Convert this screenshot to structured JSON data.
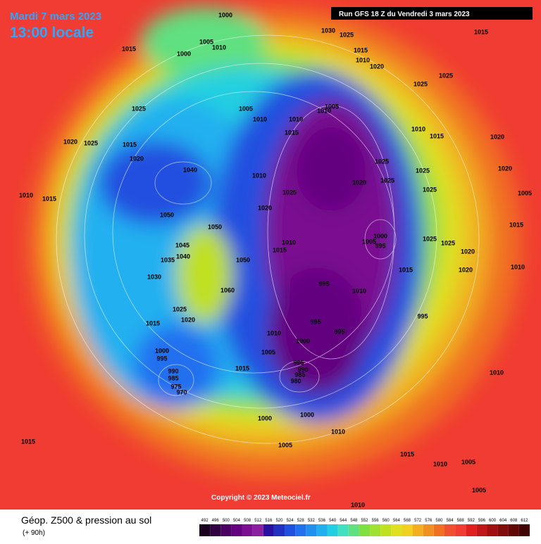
{
  "header": {
    "date": "Mardi 7 mars 2023",
    "time": "13:00 locale",
    "run": "Run GFS 18 Z du Vendredi 3 mars 2023"
  },
  "footer": {
    "title": "Géop. Z500 & pression au sol",
    "lead": "(+ 90h)",
    "copyright": "Copyright © 2023 Meteociel.fr"
  },
  "legend": {
    "values": [
      492,
      496,
      500,
      504,
      508,
      512,
      516,
      520,
      524,
      528,
      532,
      536,
      540,
      544,
      548,
      552,
      556,
      560,
      564,
      568,
      572,
      576,
      580,
      584,
      588,
      592,
      596,
      600,
      604,
      608,
      612
    ],
    "colors": [
      "#1a0020",
      "#300040",
      "#4a0060",
      "#640080",
      "#7a1090",
      "#8a20a0",
      "#2a10a0",
      "#2030c0",
      "#2050e0",
      "#2070f0",
      "#2090f0",
      "#20b0f0",
      "#20d0e0",
      "#40e0c0",
      "#60e080",
      "#80e040",
      "#a0e030",
      "#c0e020",
      "#e0e020",
      "#f0d020",
      "#f0b020",
      "#f09020",
      "#f07020",
      "#f05030",
      "#f03c32",
      "#e02020",
      "#c01818",
      "#a01010",
      "#800c0c",
      "#600808",
      "#400404"
    ]
  },
  "isobars": [
    1000,
    1005,
    1010,
    1000,
    1015,
    1030,
    1025,
    1015,
    1015,
    1010,
    1020,
    1025,
    1025,
    1025,
    1005,
    1010,
    1010,
    1010,
    1005,
    1015,
    1010,
    1015,
    1020,
    1020,
    1025,
    1015,
    1020,
    1040,
    1010,
    1025,
    1020,
    1025,
    1025,
    1025,
    1020,
    1010,
    1015,
    1025,
    1020,
    1050,
    1050,
    1045,
    1040,
    1035,
    1050,
    1015,
    1010,
    1000,
    1005,
    995,
    1025,
    1025,
    1020,
    1030,
    1060,
    1015,
    1020,
    995,
    1010,
    1025,
    1020,
    1015,
    995,
    995,
    1010,
    1000,
    1005,
    995,
    1000,
    995,
    990,
    985,
    975,
    970,
    1015,
    995,
    990,
    985,
    980,
    1000,
    1000,
    1010,
    1005,
    1015,
    1010,
    1005,
    1015,
    1010,
    1005,
    1010,
    1010,
    1015,
    1005
  ]
}
